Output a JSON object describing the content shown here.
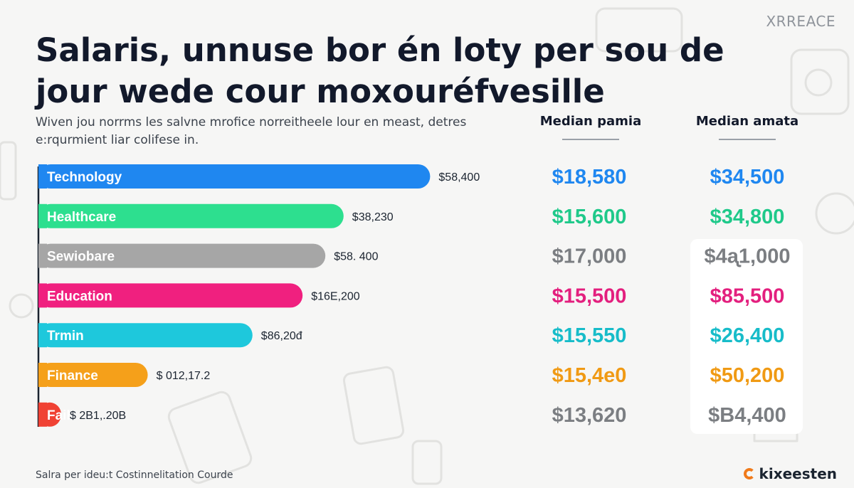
{
  "brand_top": "XRREACE",
  "title": "Salaris, unnuse bor én loty per sou de jour wede cour moxouréfvesille",
  "subtitle": "Wiven jou norrms les salvne mroficе norreitheele lour en meast, detres e:rqurmient liar colifese in.",
  "column_headers": [
    "Median pamia",
    "Median amata"
  ],
  "footer": "Salra per ideu:t Costinnelitation Courde",
  "brand_bottom": "kixeesten",
  "chart_data": {
    "type": "bar",
    "orientation": "horizontal",
    "title": "Salaris, unnuse bor én loty per sou de jour wede cour moxouréfvesille",
    "categories": [
      "Technology",
      "Healthcare",
      "Sewiobare",
      "Education",
      "Trmin",
      "Finance",
      "Fail"
    ],
    "values": [
      58400,
      38230,
      58400,
      16200,
      86204,
      12172,
      21120
    ],
    "value_labels": [
      "$58,400",
      "$38,230",
      "$58. 400",
      "$16E,200",
      "$86,20đ",
      "$ 012,17.2",
      "$ 2В1,.20B"
    ],
    "relative_lengths": [
      0.86,
      0.67,
      0.63,
      0.58,
      0.47,
      0.24,
      0.05
    ],
    "colors": [
      "#1f87f0",
      "#2ddf8f",
      "#a6a6a6",
      "#f0207f",
      "#1ec8dc",
      "#f5a01a",
      "#f04234"
    ],
    "table_columns": [
      {
        "header": "Median pamia",
        "values": [
          "$18,580",
          "$15,600",
          "$17,000",
          "$15,500",
          "$15,550",
          "$15,4е0",
          "$13,620"
        ],
        "colors": [
          "#1f87f0",
          "#1fc98a",
          "#7b7e82",
          "#e31f7e",
          "#17bcc9",
          "#f09a14",
          "#7b7e82"
        ]
      },
      {
        "header": "Median amata",
        "values": [
          "$34,500",
          "$34,800",
          "$4ᶏ1,000",
          "$85,500",
          "$26,400",
          "$50,200",
          "$B4,400"
        ],
        "colors": [
          "#1f87f0",
          "#1fc98a",
          "#7b7e82",
          "#e31f7e",
          "#17bcc9",
          "#f09a14",
          "#7b7e82"
        ]
      }
    ],
    "grid": false,
    "legend": "none"
  }
}
